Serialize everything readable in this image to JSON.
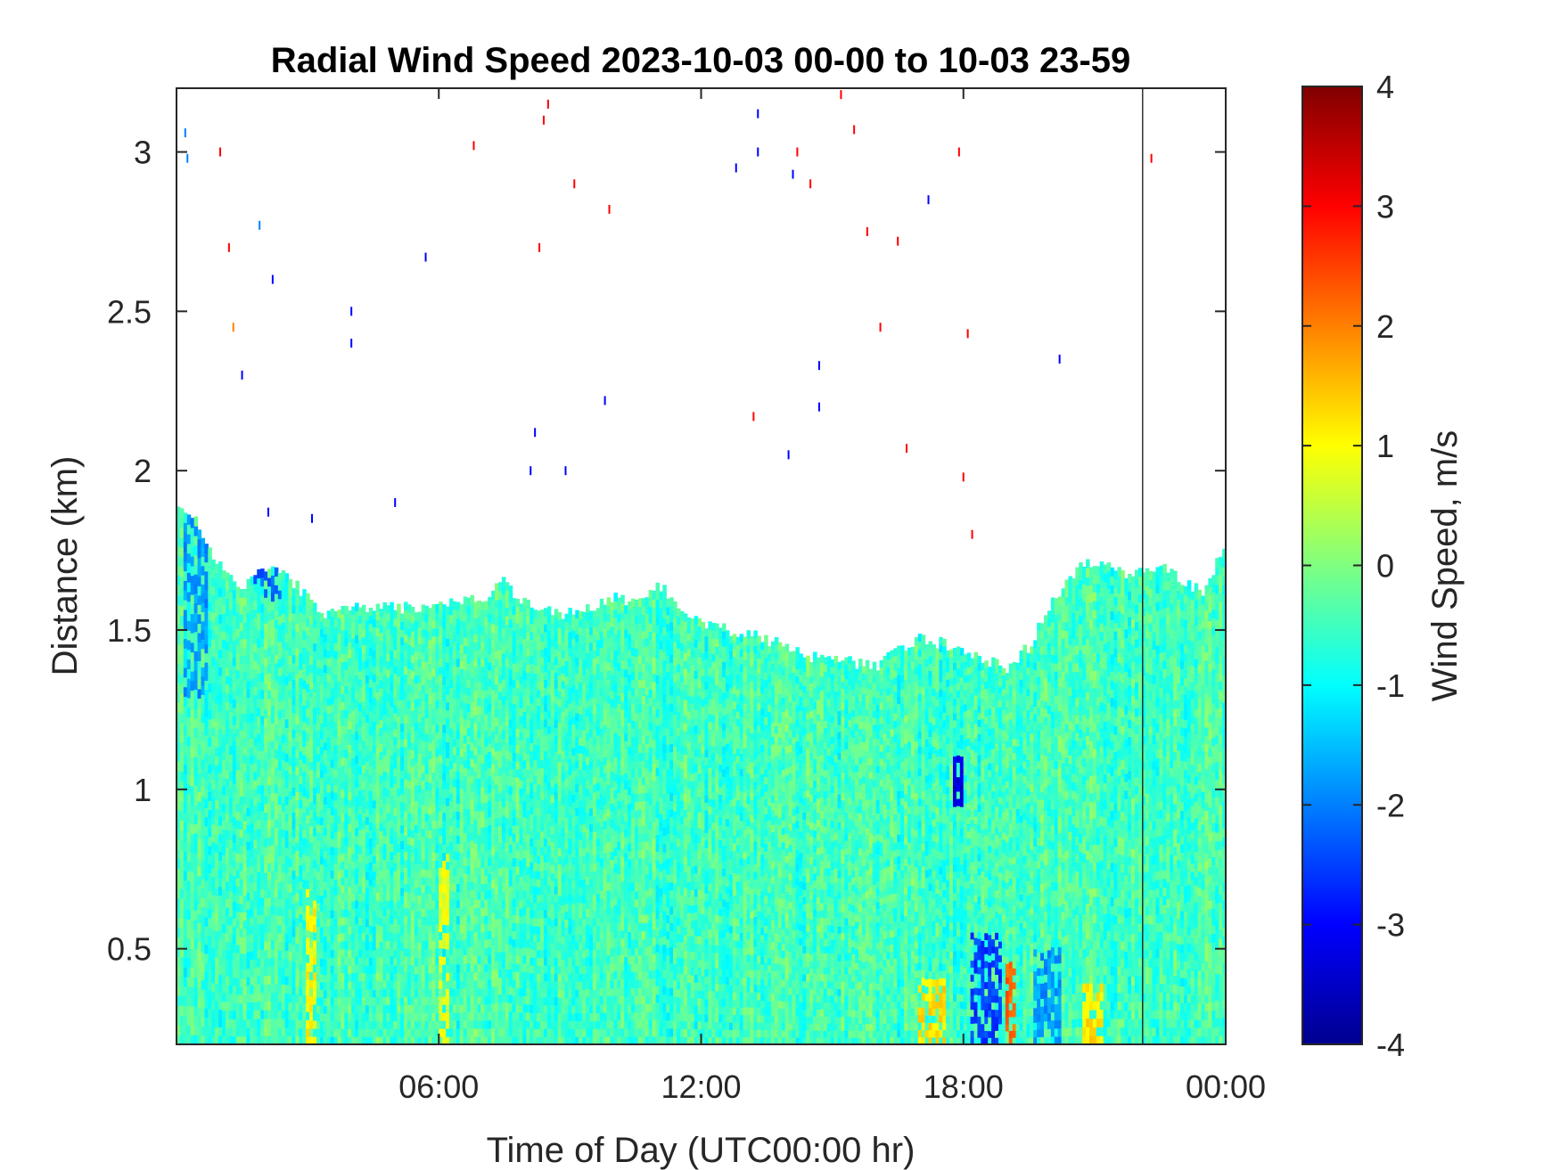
{
  "chart_data": {
    "type": "heatmap",
    "title": "Radial Wind Speed 2023-10-03 00-00 to 10-03 23-59",
    "xlabel": "Time of Day (UTC00:00 hr)",
    "ylabel": "Distance (km)",
    "colorbar_label": "Wind Speed, m/s",
    "colormap": "jet",
    "x_unit": "hours UTC",
    "xlim": [
      0,
      24
    ],
    "ylim": [
      0.2,
      3.2
    ],
    "clim": [
      -4,
      4
    ],
    "x_ticks": [
      {
        "value": 6,
        "label": "06:00"
      },
      {
        "value": 12,
        "label": "12:00"
      },
      {
        "value": 18,
        "label": "18:00"
      },
      {
        "value": 24,
        "label": "00:00"
      }
    ],
    "y_ticks": [
      {
        "value": 0.5,
        "label": "0.5"
      },
      {
        "value": 1,
        "label": "1"
      },
      {
        "value": 1.5,
        "label": "1.5"
      },
      {
        "value": 2,
        "label": "2"
      },
      {
        "value": 2.5,
        "label": "2.5"
      },
      {
        "value": 3,
        "label": "3"
      }
    ],
    "colorbar_ticks": [
      {
        "value": 4,
        "label": "4"
      },
      {
        "value": 3,
        "label": "3"
      },
      {
        "value": 2,
        "label": "2"
      },
      {
        "value": 1,
        "label": "1"
      },
      {
        "value": 0,
        "label": "0"
      },
      {
        "value": -1,
        "label": "-1"
      },
      {
        "value": -2,
        "label": "-2"
      },
      {
        "value": -3,
        "label": "-3"
      },
      {
        "value": -4,
        "label": "-4"
      }
    ],
    "data_top_profile": {
      "x": [
        0,
        0.4,
        1,
        1.5,
        2,
        2.5,
        3,
        3.3,
        4,
        5,
        6,
        7,
        7.5,
        8,
        9,
        10,
        10.5,
        11,
        11.5,
        12,
        13,
        14,
        14.5,
        15,
        15.5,
        16,
        16.5,
        17,
        17.5,
        18,
        18.5,
        19,
        19.5,
        20,
        20.5,
        21,
        21.5,
        22,
        22.5,
        23,
        23.5,
        24
      ],
      "y_km": [
        1.9,
        1.85,
        1.7,
        1.63,
        1.69,
        1.68,
        1.6,
        1.55,
        1.57,
        1.57,
        1.58,
        1.6,
        1.65,
        1.58,
        1.55,
        1.6,
        1.58,
        1.65,
        1.58,
        1.52,
        1.49,
        1.45,
        1.42,
        1.41,
        1.4,
        1.38,
        1.44,
        1.47,
        1.46,
        1.43,
        1.41,
        1.38,
        1.45,
        1.58,
        1.68,
        1.72,
        1.68,
        1.68,
        1.71,
        1.66,
        1.62,
        1.78
      ]
    },
    "base_value_ms": -0.5,
    "bands": [
      {
        "x": [
          0.2,
          0.7
        ],
        "y_km": [
          1.3,
          1.9
        ],
        "value": -1.8
      },
      {
        "x": [
          1.8,
          2.4
        ],
        "y_km": [
          1.6,
          1.7
        ],
        "value": -2.2
      },
      {
        "x": [
          3.0,
          3.2
        ],
        "y_km": [
          0.2,
          0.7
        ],
        "value": 1.0
      },
      {
        "x": [
          6.0,
          6.2
        ],
        "y_km": [
          0.2,
          0.8
        ],
        "value": 0.8
      },
      {
        "x": [
          17.0,
          17.6
        ],
        "y_km": [
          0.2,
          0.4
        ],
        "value": 1.2
      },
      {
        "x": [
          17.8,
          18.0
        ],
        "y_km": [
          0.95,
          1.1
        ],
        "value": -3.2
      },
      {
        "x": [
          18.2,
          18.9
        ],
        "y_km": [
          0.2,
          0.55
        ],
        "value": -2.5
      },
      {
        "x": [
          19.0,
          19.2
        ],
        "y_km": [
          0.2,
          0.45
        ],
        "value": 2.2
      },
      {
        "x": [
          19.6,
          20.2
        ],
        "y_km": [
          0.2,
          0.5
        ],
        "value": -1.8
      },
      {
        "x": [
          20.7,
          21.2
        ],
        "y_km": [
          0.2,
          0.4
        ],
        "value": 1.2
      }
    ],
    "scatter": [
      {
        "x": 0.2,
        "y": 3.06,
        "value": -2
      },
      {
        "x": 0.25,
        "y": 2.98,
        "value": -2
      },
      {
        "x": 1.0,
        "y": 3.0,
        "value": 3
      },
      {
        "x": 1.2,
        "y": 2.7,
        "value": 3
      },
      {
        "x": 1.3,
        "y": 2.45,
        "value": 2
      },
      {
        "x": 1.5,
        "y": 2.3,
        "value": -3
      },
      {
        "x": 1.9,
        "y": 2.77,
        "value": -2
      },
      {
        "x": 2.2,
        "y": 2.6,
        "value": -3
      },
      {
        "x": 2.1,
        "y": 1.87,
        "value": -3
      },
      {
        "x": 3.1,
        "y": 1.85,
        "value": -3
      },
      {
        "x": 4.0,
        "y": 2.5,
        "value": -3
      },
      {
        "x": 4.0,
        "y": 2.4,
        "value": -3
      },
      {
        "x": 5.0,
        "y": 1.9,
        "value": -3
      },
      {
        "x": 5.7,
        "y": 2.67,
        "value": -3
      },
      {
        "x": 6.8,
        "y": 3.02,
        "value": 3
      },
      {
        "x": 8.1,
        "y": 2.0,
        "value": -3
      },
      {
        "x": 8.2,
        "y": 2.12,
        "value": -3
      },
      {
        "x": 8.3,
        "y": 2.7,
        "value": 3
      },
      {
        "x": 8.4,
        "y": 3.1,
        "value": 3
      },
      {
        "x": 8.5,
        "y": 3.15,
        "value": 3
      },
      {
        "x": 8.9,
        "y": 2.0,
        "value": -3
      },
      {
        "x": 9.1,
        "y": 2.9,
        "value": 3
      },
      {
        "x": 9.8,
        "y": 2.22,
        "value": -3
      },
      {
        "x": 9.9,
        "y": 2.82,
        "value": 3
      },
      {
        "x": 12.8,
        "y": 2.95,
        "value": -3
      },
      {
        "x": 13.2,
        "y": 2.17,
        "value": 3
      },
      {
        "x": 13.3,
        "y": 3.0,
        "value": -3
      },
      {
        "x": 13.3,
        "y": 3.12,
        "value": -3
      },
      {
        "x": 14.0,
        "y": 2.05,
        "value": -3
      },
      {
        "x": 14.1,
        "y": 2.93,
        "value": -3
      },
      {
        "x": 14.2,
        "y": 3.0,
        "value": 3
      },
      {
        "x": 14.5,
        "y": 2.9,
        "value": 3
      },
      {
        "x": 14.7,
        "y": 2.33,
        "value": -3
      },
      {
        "x": 14.7,
        "y": 2.2,
        "value": -3
      },
      {
        "x": 15.2,
        "y": 3.18,
        "value": 3
      },
      {
        "x": 15.5,
        "y": 3.07,
        "value": 3
      },
      {
        "x": 15.8,
        "y": 2.75,
        "value": 3
      },
      {
        "x": 16.1,
        "y": 2.45,
        "value": 3
      },
      {
        "x": 16.5,
        "y": 2.72,
        "value": 3
      },
      {
        "x": 16.7,
        "y": 2.07,
        "value": 3
      },
      {
        "x": 17.2,
        "y": 2.85,
        "value": -3
      },
      {
        "x": 17.9,
        "y": 3.0,
        "value": 3
      },
      {
        "x": 18.0,
        "y": 1.98,
        "value": 3
      },
      {
        "x": 18.1,
        "y": 2.43,
        "value": 3
      },
      {
        "x": 18.2,
        "y": 1.8,
        "value": 3
      },
      {
        "x": 20.2,
        "y": 2.35,
        "value": -3
      },
      {
        "x": 22.3,
        "y": 2.98,
        "value": 3
      }
    ],
    "vertical_line_x": 22.1
  }
}
